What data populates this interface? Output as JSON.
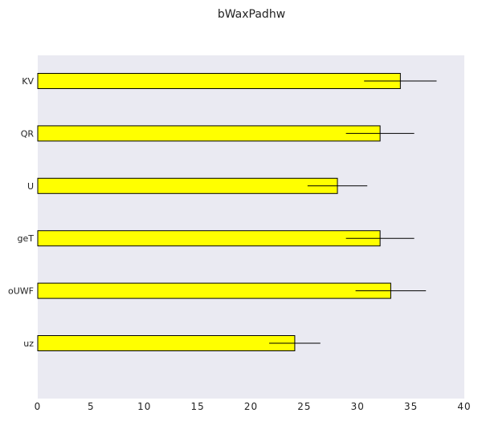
{
  "chart_data": {
    "type": "bar",
    "orientation": "horizontal",
    "title": "bWaxPadhw",
    "xlabel": "",
    "ylabel": "",
    "categories": [
      "KV",
      "QR",
      "U",
      "geT",
      "oUWF",
      "uz"
    ],
    "values": [
      34.0,
      32.1,
      28.1,
      32.1,
      33.1,
      24.1
    ],
    "errors": [
      3.4,
      3.2,
      2.8,
      3.2,
      3.3,
      2.4
    ],
    "xlim": [
      0,
      40
    ],
    "xticks": [
      0,
      5,
      10,
      15,
      20,
      25,
      30,
      35,
      40
    ],
    "grid": false,
    "colors": {
      "bar": "#ffff00",
      "bar_edge": "#000000",
      "plot_background": "#eaeaf2",
      "error_bar": "#000000"
    }
  }
}
